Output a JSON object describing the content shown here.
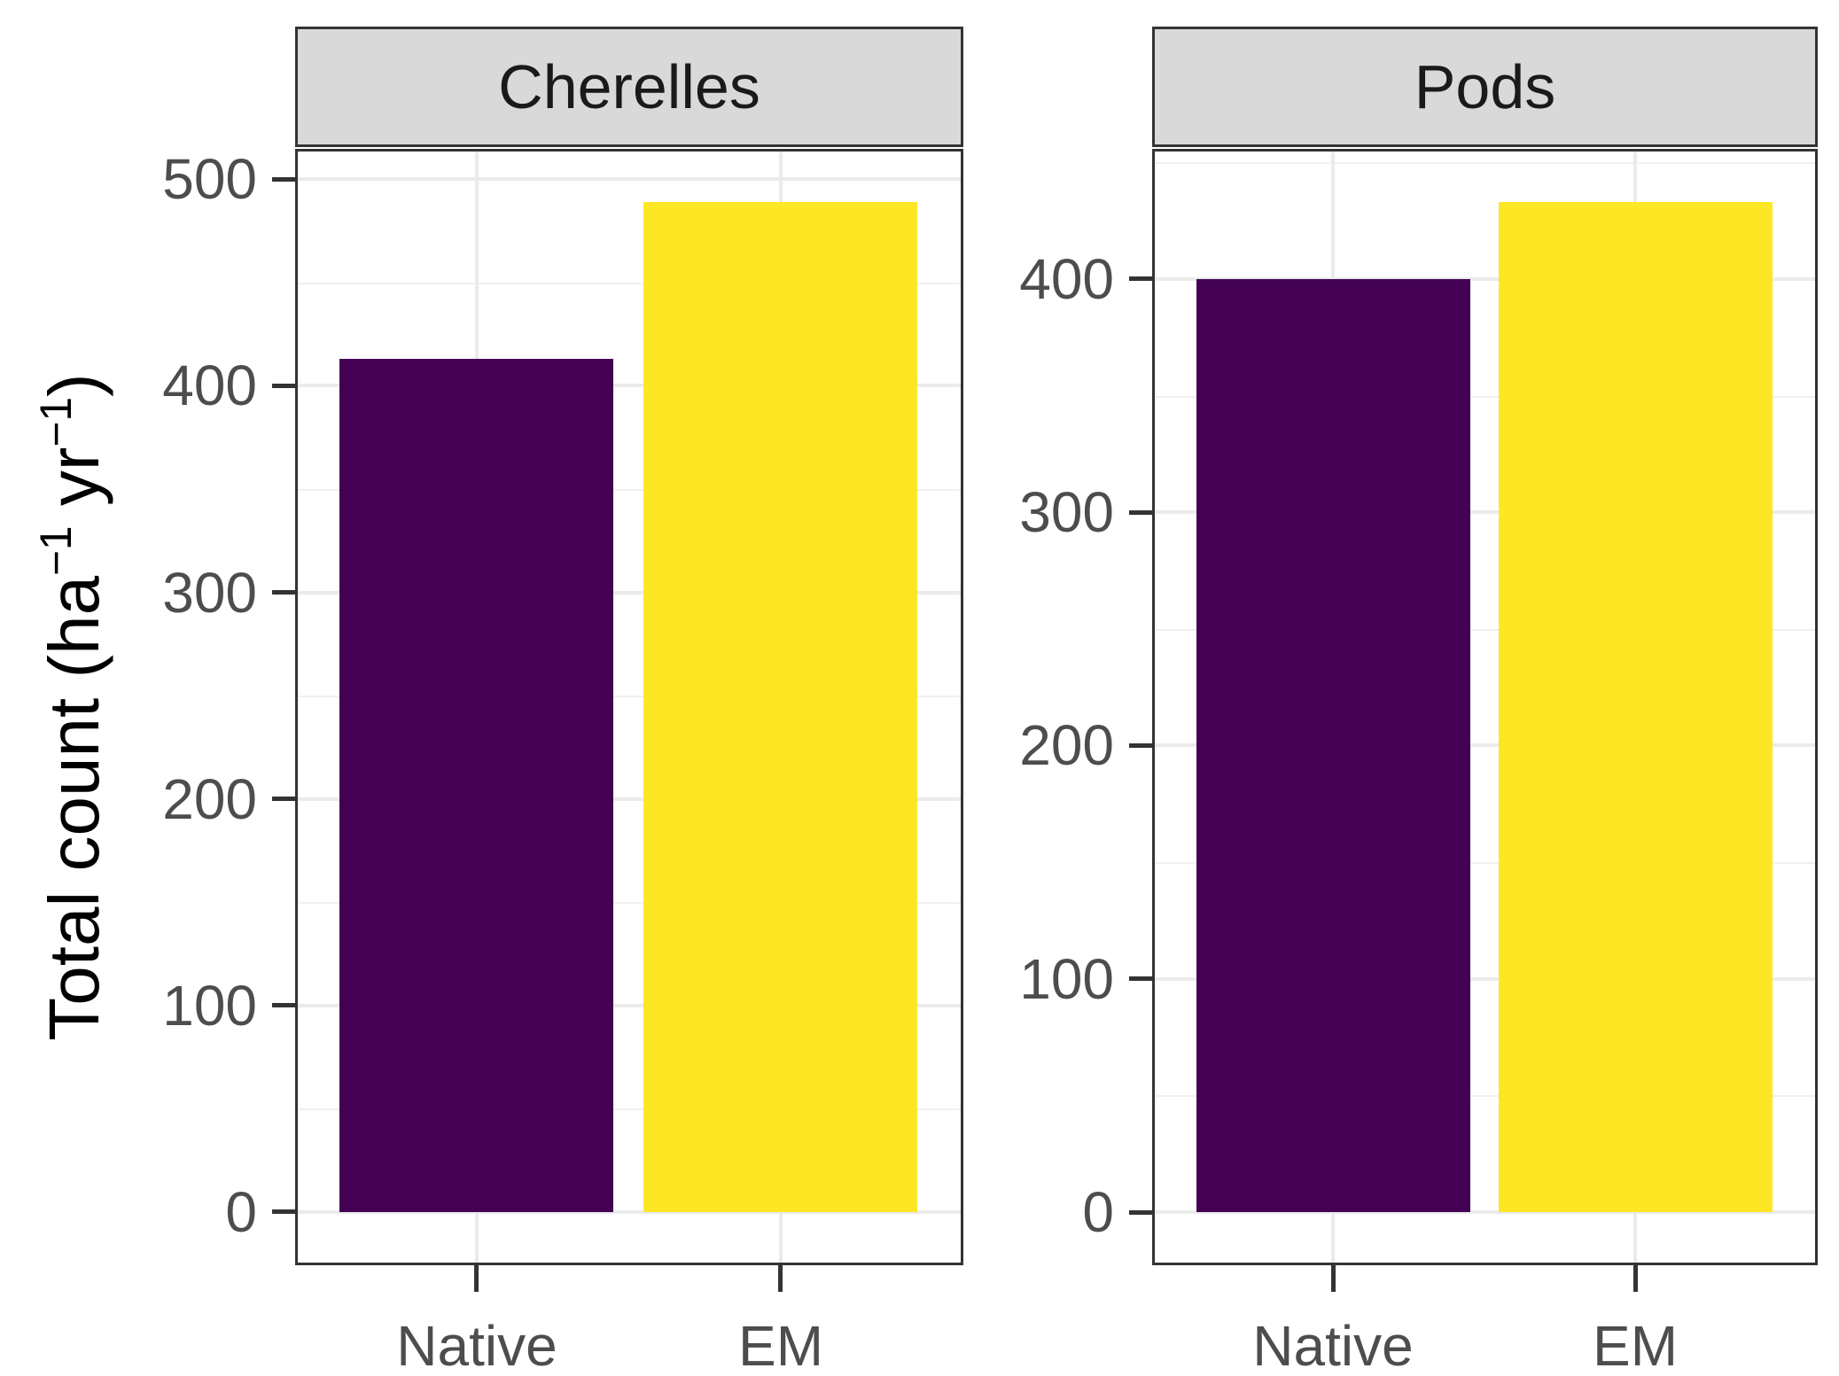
{
  "figure": {
    "background": "#ffffff"
  },
  "y_axis": {
    "label_text": "Total count (ha⁻¹ yr⁻¹)",
    "label_segments": [
      {
        "text": "Total count (ha"
      },
      {
        "text": "−1",
        "sup": true
      },
      {
        "text": " yr"
      },
      {
        "text": "−1",
        "sup": true
      },
      {
        "text": ")"
      }
    ]
  },
  "x_axis": {
    "categories": [
      "Native",
      "EM"
    ]
  },
  "colors": {
    "native_bar": "#440154",
    "em_bar": "#FDE725",
    "grid_major": "#EBEBEB",
    "grid_minor": "#F0F0F0",
    "panel_border": "#333333",
    "strip_background": "#D9D9D9",
    "strip_text": "#1A1A1A",
    "tick_text": "#4D4D4D",
    "tick_mark": "#333333",
    "axis_title_text": "#000000"
  },
  "chart_data": {
    "type": "bar",
    "faceted": true,
    "title": "",
    "xlabel": "",
    "ylabel": "Total count (ha⁻¹ yr⁻¹)",
    "legend": "none",
    "grid": "major and minor horizontal gridlines, vertical gridline per category",
    "theme": "ggplot2 theme_bw with grey strip headers",
    "categories": [
      "Native",
      "EM"
    ],
    "facets": [
      {
        "title": "Cherelles",
        "categories": [
          "Native",
          "EM"
        ],
        "values": [
          413,
          489
        ],
        "bar_colors": [
          "#440154",
          "#FDE725"
        ],
        "y_ticks": [
          0,
          100,
          200,
          300,
          400,
          500
        ],
        "ylim_display": [
          -24.5,
          514
        ]
      },
      {
        "title": "Pods",
        "categories": [
          "Native",
          "EM"
        ],
        "values": [
          400,
          433
        ],
        "bar_colors": [
          "#440154",
          "#FDE725"
        ],
        "y_ticks": [
          0,
          100,
          200,
          300,
          400
        ],
        "ylim_display": [
          -21.7,
          455
        ]
      }
    ]
  }
}
